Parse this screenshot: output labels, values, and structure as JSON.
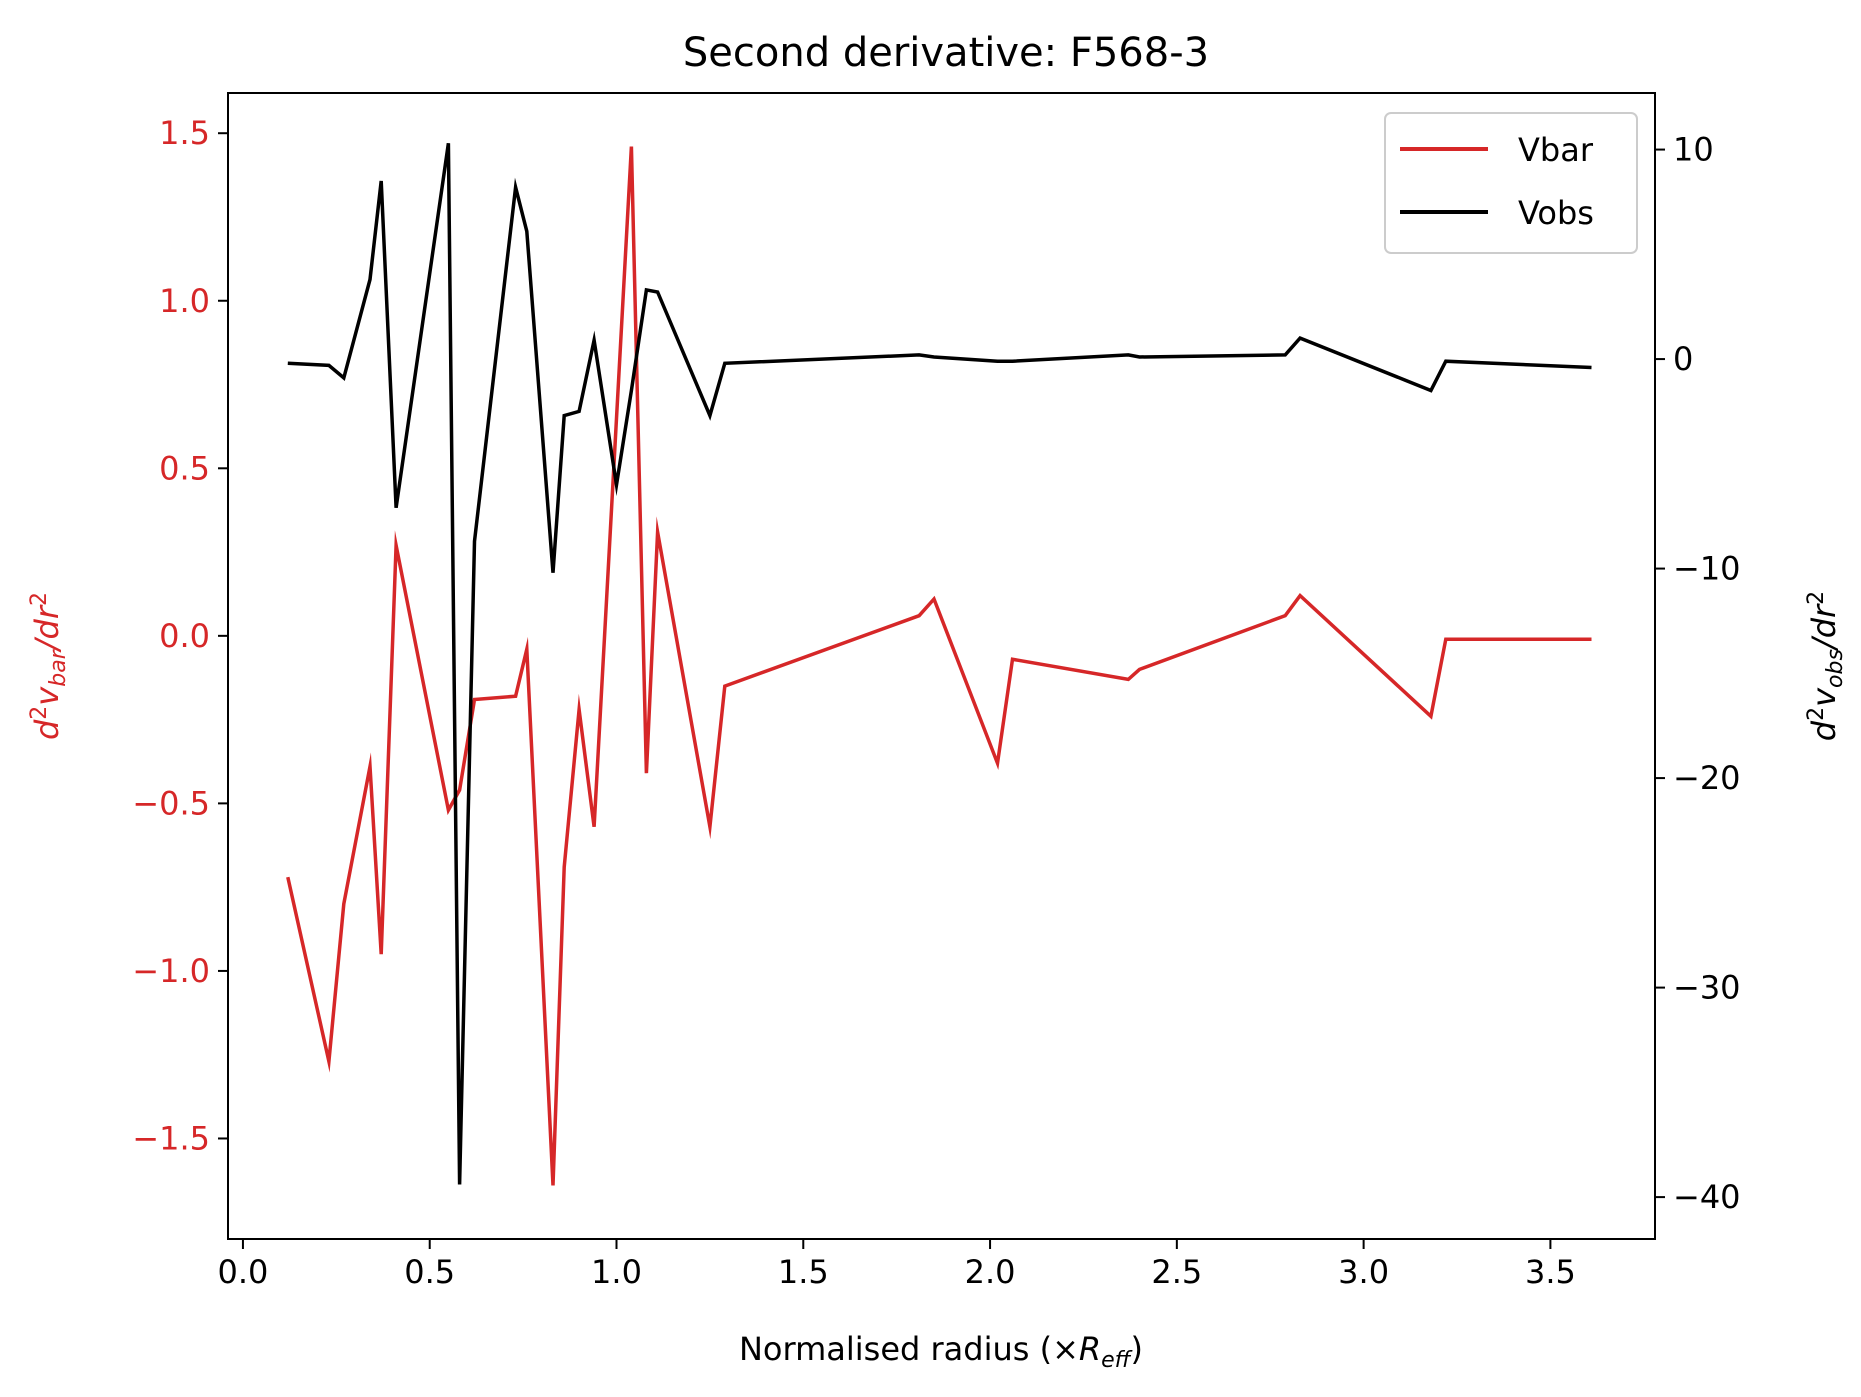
{
  "chart_data": {
    "type": "line",
    "title": "Second derivative: F568-3",
    "xlabel": {
      "base": "Normalised radius (×",
      "math": "R",
      "sub": "eff",
      "close": ")"
    },
    "ylabel_left": {
      "pre": "d",
      "sup1": "2",
      "v": "v",
      "sub": "bar",
      "mid": "/dr",
      "sup2": "2"
    },
    "ylabel_right": {
      "pre": "d",
      "sup1": "2",
      "v": "v",
      "sub": "obs",
      "mid": "/dr",
      "sup2": "2"
    },
    "xlim": [
      -0.04,
      3.78
    ],
    "ylim_left": [
      -1.8,
      1.62
    ],
    "ylim_right": [
      -42,
      12.7
    ],
    "xticks": [
      0.0,
      0.5,
      1.0,
      1.5,
      2.0,
      2.5,
      3.0,
      3.5
    ],
    "xtick_labels": [
      "0.0",
      "0.5",
      "1.0",
      "1.5",
      "2.0",
      "2.5",
      "3.0",
      "3.5"
    ],
    "yticks_left": [
      -1.5,
      -1.0,
      -0.5,
      0.0,
      0.5,
      1.0,
      1.5
    ],
    "ytick_labels_left": [
      "−1.5",
      "−1.0",
      "−0.5",
      "0.0",
      "0.5",
      "1.0",
      "1.5"
    ],
    "yticks_right": [
      -40,
      -30,
      -20,
      -10,
      0,
      10
    ],
    "ytick_labels_right": [
      "−40",
      "−30",
      "−20",
      "−10",
      "0",
      "10"
    ],
    "legend_position": "upper right",
    "colors": {
      "vbar": "#d62728",
      "vobs": "#000000",
      "left_axis": "#d62728"
    },
    "series": [
      {
        "name": "Vbar",
        "axis": "left",
        "x": [
          0.12,
          0.23,
          0.27,
          0.34,
          0.37,
          0.41,
          0.55,
          0.58,
          0.62,
          0.73,
          0.76,
          0.83,
          0.86,
          0.9,
          0.94,
          1.04,
          1.08,
          1.11,
          1.25,
          1.29,
          1.81,
          1.85,
          2.02,
          2.06,
          2.37,
          2.4,
          2.79,
          2.83,
          3.18,
          3.22,
          3.61
        ],
        "values": [
          -0.72,
          -1.27,
          -0.8,
          -0.39,
          -0.95,
          0.27,
          -0.52,
          -0.46,
          -0.19,
          -0.18,
          -0.04,
          -1.64,
          -0.69,
          -0.22,
          -0.57,
          1.46,
          -0.41,
          0.31,
          -0.57,
          -0.15,
          0.06,
          0.11,
          -0.38,
          -0.07,
          -0.13,
          -0.1,
          0.06,
          0.12,
          -0.24,
          -0.01,
          -0.01
        ]
      },
      {
        "name": "Vobs",
        "axis": "right",
        "x": [
          0.12,
          0.23,
          0.27,
          0.34,
          0.37,
          0.41,
          0.55,
          0.58,
          0.62,
          0.73,
          0.76,
          0.83,
          0.86,
          0.9,
          0.94,
          1.0,
          1.04,
          1.08,
          1.11,
          1.25,
          1.29,
          1.81,
          1.85,
          2.02,
          2.06,
          2.37,
          2.4,
          2.79,
          2.83,
          3.18,
          3.22,
          3.61
        ],
        "values": [
          -0.2,
          -0.3,
          -0.9,
          3.8,
          8.5,
          -7.1,
          10.3,
          -39.4,
          -8.7,
          8.2,
          6.1,
          -10.2,
          -2.7,
          -2.5,
          0.9,
          -6.0,
          -1.5,
          3.3,
          3.2,
          -2.7,
          -0.2,
          0.2,
          0.1,
          -0.1,
          -0.1,
          0.2,
          0.1,
          0.2,
          1.0,
          -1.5,
          -0.1,
          -0.4
        ]
      }
    ]
  }
}
